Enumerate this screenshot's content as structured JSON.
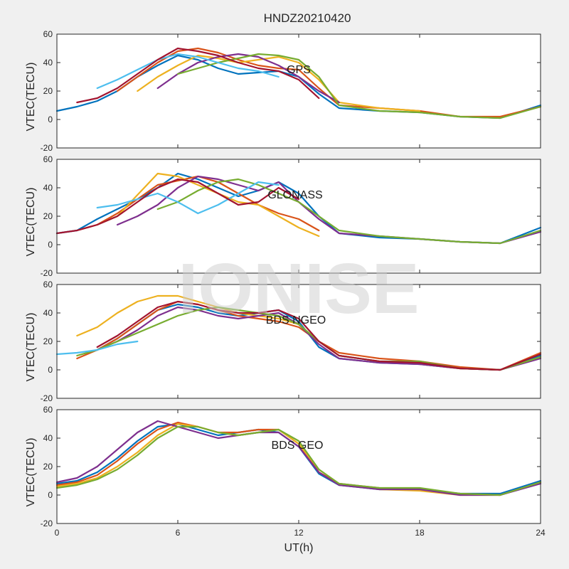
{
  "figure_title": "HNDZ20210420",
  "watermark": "IONISE",
  "series_colors": [
    "#0072BD",
    "#D95319",
    "#EDB120",
    "#7E2F8E",
    "#77AC30",
    "#4DBEEE",
    "#A2142F"
  ],
  "chart_data": [
    {
      "type": "line",
      "annotation": "GPS",
      "ylabel": "VTEC(TECU)",
      "xlabel": "",
      "xlim": [
        0,
        24
      ],
      "ylim": [
        -20,
        60
      ],
      "x_ticks": [
        "0",
        "6",
        "12",
        "18",
        "24"
      ],
      "y_ticks": [
        "-20",
        "0",
        "20",
        "40",
        "60"
      ],
      "grid": false,
      "series": [
        {
          "x": [
            0,
            1,
            2,
            3,
            4,
            5,
            6,
            7,
            8,
            9,
            10,
            11,
            12,
            13,
            14,
            16,
            18,
            20,
            22,
            24
          ],
          "y": [
            6,
            9,
            13,
            20,
            30,
            38,
            45,
            42,
            36,
            32,
            33,
            34,
            30,
            18,
            8,
            6,
            5,
            2,
            1,
            10
          ]
        },
        {
          "x": [
            3,
            4,
            5,
            6,
            7,
            8,
            9,
            10,
            11,
            12,
            13,
            14,
            16,
            18,
            20,
            22,
            24
          ],
          "y": [
            20,
            30,
            40,
            48,
            50,
            47,
            42,
            38,
            36,
            35,
            22,
            10,
            8,
            6,
            2,
            2,
            9
          ]
        },
        {
          "x": [
            4,
            5,
            6,
            7,
            8,
            9,
            10,
            11,
            12,
            13,
            14,
            16,
            18
          ],
          "y": [
            20,
            30,
            38,
            45,
            43,
            40,
            42,
            44,
            40,
            28,
            12,
            8,
            6
          ]
        },
        {
          "x": [
            5,
            6,
            7,
            8,
            9,
            10,
            11,
            12,
            13,
            14
          ],
          "y": [
            22,
            32,
            40,
            44,
            46,
            44,
            38,
            30,
            20,
            12
          ]
        },
        {
          "x": [
            6,
            7,
            8,
            9,
            10,
            11,
            12,
            13,
            14,
            16,
            18,
            20,
            22,
            24
          ],
          "y": [
            32,
            36,
            40,
            43,
            46,
            45,
            42,
            30,
            10,
            6,
            5,
            2,
            1,
            9
          ]
        },
        {
          "x": [
            2,
            3,
            4,
            5,
            6,
            7,
            8,
            9,
            10,
            11
          ],
          "y": [
            22,
            28,
            35,
            42,
            46,
            44,
            40,
            36,
            34,
            30
          ]
        },
        {
          "x": [
            1,
            2,
            3,
            4,
            5,
            6,
            7,
            8,
            9,
            10,
            11,
            12,
            13
          ],
          "y": [
            12,
            15,
            22,
            32,
            42,
            50,
            48,
            45,
            40,
            36,
            34,
            28,
            15
          ]
        }
      ]
    },
    {
      "type": "line",
      "annotation": "GLONASS",
      "ylabel": "VTEC(TECU)",
      "xlabel": "",
      "xlim": [
        0,
        24
      ],
      "ylim": [
        -20,
        60
      ],
      "x_ticks": [
        "0",
        "6",
        "12",
        "18",
        "24"
      ],
      "y_ticks": [
        "-20",
        "0",
        "20",
        "40",
        "60"
      ],
      "grid": false,
      "series": [
        {
          "x": [
            0,
            1,
            2,
            3,
            4,
            5,
            6,
            7,
            8,
            9,
            10,
            11,
            12,
            13,
            14,
            16,
            18,
            20,
            22,
            24
          ],
          "y": [
            8,
            10,
            18,
            25,
            32,
            40,
            50,
            46,
            40,
            34,
            38,
            44,
            36,
            20,
            8,
            5,
            4,
            2,
            1,
            12
          ]
        },
        {
          "x": [
            1,
            2,
            3,
            4,
            5,
            6,
            7,
            8,
            9,
            10,
            11,
            12,
            13
          ],
          "y": [
            10,
            14,
            22,
            32,
            42,
            45,
            48,
            44,
            36,
            28,
            22,
            18,
            10
          ]
        },
        {
          "x": [
            2,
            3,
            4,
            5,
            6,
            7,
            8,
            9,
            10,
            11,
            12,
            13
          ],
          "y": [
            14,
            20,
            35,
            50,
            48,
            42,
            36,
            30,
            28,
            20,
            12,
            6
          ]
        },
        {
          "x": [
            3,
            4,
            5,
            6,
            7,
            8,
            9,
            10,
            11,
            12,
            13,
            14,
            16,
            18,
            20,
            22,
            24
          ],
          "y": [
            14,
            20,
            28,
            40,
            48,
            46,
            42,
            38,
            44,
            30,
            18,
            8,
            6,
            4,
            2,
            1,
            9
          ]
        },
        {
          "x": [
            5,
            6,
            7,
            8,
            9,
            10,
            11,
            12,
            13,
            14,
            16,
            18,
            20,
            22,
            24
          ],
          "y": [
            25,
            30,
            38,
            44,
            46,
            42,
            36,
            30,
            20,
            10,
            6,
            4,
            2,
            1,
            10
          ]
        },
        {
          "x": [
            2,
            3,
            4,
            5,
            6,
            7,
            8,
            9,
            10,
            11
          ],
          "y": [
            26,
            28,
            32,
            36,
            30,
            22,
            28,
            36,
            44,
            42
          ]
        },
        {
          "x": [
            0,
            1,
            2,
            3,
            4,
            5,
            6,
            7,
            8,
            9,
            10,
            11,
            12
          ],
          "y": [
            8,
            10,
            14,
            20,
            30,
            40,
            46,
            44,
            36,
            28,
            30,
            40,
            32
          ]
        }
      ]
    },
    {
      "type": "line",
      "annotation": "BDS NGEO",
      "ylabel": "VTEC(TECU)",
      "xlabel": "",
      "xlim": [
        0,
        24
      ],
      "ylim": [
        -20,
        60
      ],
      "x_ticks": [
        "0",
        "6",
        "12",
        "18",
        "24"
      ],
      "y_ticks": [
        "-20",
        "0",
        "20",
        "40",
        "60"
      ],
      "grid": false,
      "series": [
        {
          "x": [
            2,
            3,
            4,
            5,
            6,
            7,
            8,
            9,
            10,
            11,
            12,
            13,
            14,
            16,
            18,
            20,
            22,
            24
          ],
          "y": [
            14,
            22,
            32,
            42,
            46,
            44,
            40,
            38,
            40,
            42,
            34,
            16,
            8,
            5,
            4,
            1,
            0,
            10
          ]
        },
        {
          "x": [
            1,
            2,
            3,
            4,
            5,
            6,
            7,
            8,
            9,
            10,
            11,
            12,
            13,
            14,
            16,
            18,
            20,
            22,
            24
          ],
          "y": [
            8,
            14,
            22,
            32,
            42,
            48,
            46,
            42,
            38,
            36,
            34,
            30,
            20,
            12,
            8,
            6,
            2,
            0,
            12
          ]
        },
        {
          "x": [
            1,
            2,
            3,
            4,
            5,
            6,
            7,
            8,
            9,
            10,
            11,
            12,
            13,
            14,
            16,
            18,
            20,
            22,
            24
          ],
          "y": [
            24,
            30,
            40,
            48,
            52,
            52,
            48,
            44,
            40,
            38,
            36,
            32,
            20,
            10,
            6,
            4,
            1,
            0,
            9
          ]
        },
        {
          "x": [
            2,
            3,
            4,
            5,
            6,
            7,
            8,
            9,
            10,
            11,
            12,
            13,
            14,
            16,
            18,
            20,
            22,
            24
          ],
          "y": [
            14,
            20,
            28,
            38,
            44,
            42,
            38,
            36,
            38,
            40,
            32,
            18,
            8,
            5,
            4,
            1,
            0,
            8
          ]
        },
        {
          "x": [
            1,
            2,
            3,
            4,
            5,
            6,
            7,
            8,
            9,
            10,
            11,
            12,
            13,
            14,
            16,
            18,
            20,
            22,
            24
          ],
          "y": [
            10,
            14,
            20,
            26,
            32,
            38,
            42,
            44,
            42,
            40,
            38,
            32,
            20,
            10,
            6,
            6,
            1,
            0,
            9
          ]
        },
        {
          "x": [
            0,
            1,
            2,
            3,
            4
          ],
          "y": [
            11,
            12,
            14,
            18,
            20
          ]
        },
        {
          "x": [
            2,
            3,
            4,
            5,
            6,
            7,
            8,
            9,
            10,
            11,
            12,
            13,
            14,
            16,
            18,
            20,
            22,
            24
          ],
          "y": [
            16,
            24,
            34,
            44,
            48,
            46,
            42,
            40,
            40,
            42,
            36,
            20,
            10,
            6,
            5,
            1,
            0,
            11
          ]
        }
      ]
    },
    {
      "type": "line",
      "annotation": "BDS GEO",
      "ylabel": "VTEC(TECU)",
      "xlabel": "UT(h)",
      "xlim": [
        0,
        24
      ],
      "ylim": [
        -20,
        60
      ],
      "x_ticks": [
        "0",
        "6",
        "12",
        "18",
        "24"
      ],
      "y_ticks": [
        "-20",
        "0",
        "20",
        "40",
        "60"
      ],
      "grid": false,
      "series": [
        {
          "x": [
            0,
            1,
            2,
            3,
            4,
            5,
            6,
            7,
            8,
            9,
            10,
            11,
            12,
            13,
            14,
            16,
            18,
            20,
            22,
            24
          ],
          "y": [
            8,
            10,
            16,
            26,
            38,
            48,
            50,
            46,
            42,
            44,
            46,
            44,
            34,
            15,
            7,
            4,
            4,
            1,
            1,
            10
          ]
        },
        {
          "x": [
            0,
            1,
            2,
            3,
            4,
            5,
            6,
            7,
            8,
            9,
            10,
            11,
            12,
            13,
            14,
            16,
            18,
            20,
            22,
            24
          ],
          "y": [
            7,
            9,
            14,
            24,
            36,
            46,
            51,
            48,
            44,
            44,
            46,
            46,
            36,
            16,
            8,
            5,
            4,
            1,
            0,
            9
          ]
        },
        {
          "x": [
            0,
            1,
            2,
            3,
            4,
            5,
            6,
            7,
            8,
            9,
            10,
            11,
            12,
            13,
            14,
            16,
            18,
            20,
            22,
            24
          ],
          "y": [
            6,
            8,
            12,
            20,
            30,
            42,
            50,
            48,
            44,
            42,
            44,
            46,
            36,
            18,
            8,
            4,
            3,
            0,
            0,
            9
          ]
        },
        {
          "x": [
            0,
            1,
            2,
            3,
            4,
            5,
            6,
            7,
            8,
            9,
            10,
            11,
            12,
            13,
            14,
            16,
            18,
            20,
            22,
            24
          ],
          "y": [
            9,
            12,
            20,
            32,
            44,
            52,
            48,
            44,
            40,
            42,
            44,
            44,
            34,
            16,
            7,
            4,
            4,
            0,
            0,
            8
          ]
        },
        {
          "x": [
            0,
            1,
            2,
            3,
            4,
            5,
            6,
            7,
            8,
            9,
            10,
            11,
            12,
            13,
            14,
            16,
            18,
            20,
            22,
            24
          ],
          "y": [
            5,
            7,
            11,
            18,
            28,
            40,
            48,
            48,
            44,
            42,
            44,
            46,
            38,
            18,
            8,
            5,
            5,
            1,
            0,
            9
          ]
        }
      ]
    }
  ]
}
